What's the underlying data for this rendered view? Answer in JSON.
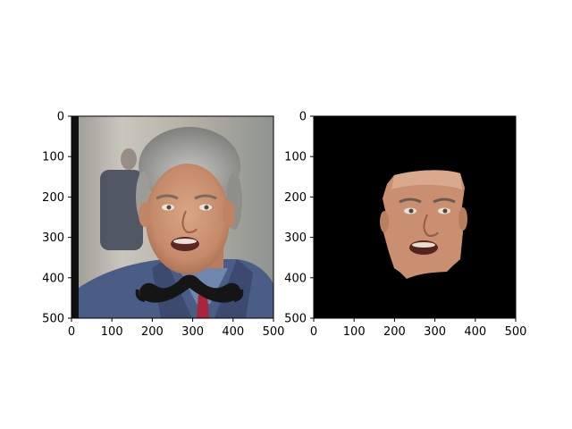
{
  "figure": {
    "background": "#ffffff",
    "axis_color": "#000000"
  },
  "chart_data": [
    {
      "type": "image",
      "description_key": "left-panel",
      "content": "photo of a smiling gray-haired man in a blue jacket with a black cartoon mustache overlay near the chin",
      "xlim": [
        0,
        500
      ],
      "ylim": [
        500,
        0
      ],
      "xticks": [
        0,
        100,
        200,
        300,
        400,
        500
      ],
      "yticks": [
        0,
        100,
        200,
        300,
        400,
        500
      ],
      "xtick_labels": [
        "0",
        "100",
        "200",
        "300",
        "400",
        "500"
      ],
      "ytick_labels": [
        "0",
        "100",
        "200",
        "300",
        "400",
        "500"
      ],
      "colors": {
        "wall": "#b9b6ad",
        "jacket": "#4a5d86",
        "hair": "#a8a8a8",
        "skin": "#c9906f",
        "mustache": "#151515",
        "tie": "#a8253b"
      }
    },
    {
      "type": "image",
      "description_key": "right-panel",
      "content": "segmented face cut-out of the same man on a black background",
      "xlim": [
        0,
        500
      ],
      "ylim": [
        500,
        0
      ],
      "xticks": [
        0,
        100,
        200,
        300,
        400,
        500
      ],
      "yticks": [
        0,
        100,
        200,
        300,
        400,
        500
      ],
      "xtick_labels": [
        "0",
        "100",
        "200",
        "300",
        "400",
        "500"
      ],
      "ytick_labels": [
        "0",
        "100",
        "200",
        "300",
        "400",
        "500"
      ],
      "colors": {
        "background": "#000000",
        "skin": "#c98f70"
      }
    }
  ]
}
